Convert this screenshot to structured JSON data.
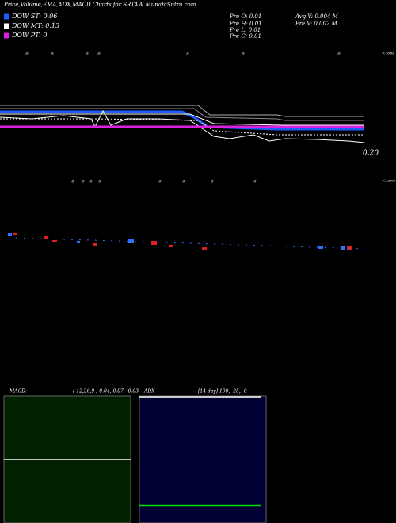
{
  "header": {
    "title": "Price,Volume,EMA,ADX,MACD Charts for SRTAW MunafaSutra.com"
  },
  "legend": [
    {
      "label": "DOW ST: 0.06",
      "color": "#1f5cff"
    },
    {
      "label": "DOW MT: 0.13",
      "color": "#ffffff"
    },
    {
      "label": "DOW PT: 0",
      "color": "#e020e0"
    }
  ],
  "prev": [
    "Pre  O: 0.01",
    "Pre  H: 0.01",
    "Pre  L: 0.01",
    "Pre  C: 0.01"
  ],
  "volume": [
    "Avg V: 0.004  M",
    "Pre  V: 0.002  M"
  ],
  "price_label": "0.20",
  "tops": {
    "label": "<Tops",
    "marks": [
      "0",
      "0",
      "0",
      "0",
      "0",
      "0",
      "0"
    ]
  },
  "lows": {
    "label": "<Lows",
    "marks": [
      "0",
      "0",
      "0",
      "0",
      "0",
      "0",
      "0",
      "0"
    ]
  },
  "macd": {
    "title": "MACD:",
    "params": "( 12,26,9 ) 0.04, 0.07, -0.03"
  },
  "adx": {
    "title": "ADX",
    "params": "[14  day] 100, -25, -0"
  }
}
